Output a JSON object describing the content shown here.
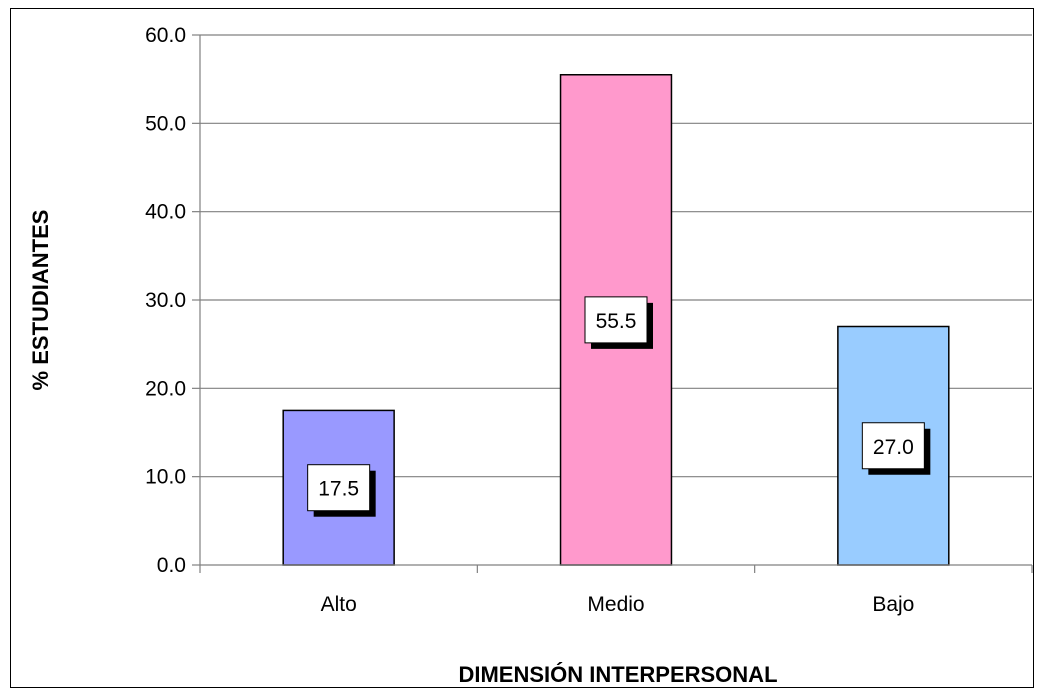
{
  "chart_data": {
    "type": "bar",
    "title": "",
    "xlabel": "DIMENSIÓN INTERPERSONAL",
    "ylabel": "% ESTUDIANTES",
    "categories": [
      "Alto",
      "Medio",
      "Bajo"
    ],
    "values": [
      17.5,
      55.5,
      27.0
    ],
    "data_labels": [
      "17.5",
      "55.5",
      "27.0"
    ],
    "bar_colors": [
      "#9999ff",
      "#ff99cc",
      "#99ccff"
    ],
    "ylim": [
      0,
      60
    ],
    "yticks": [
      "0.0",
      "10.0",
      "20.0",
      "30.0",
      "40.0",
      "50.0",
      "60.0"
    ],
    "grid": true,
    "legend": "none"
  }
}
